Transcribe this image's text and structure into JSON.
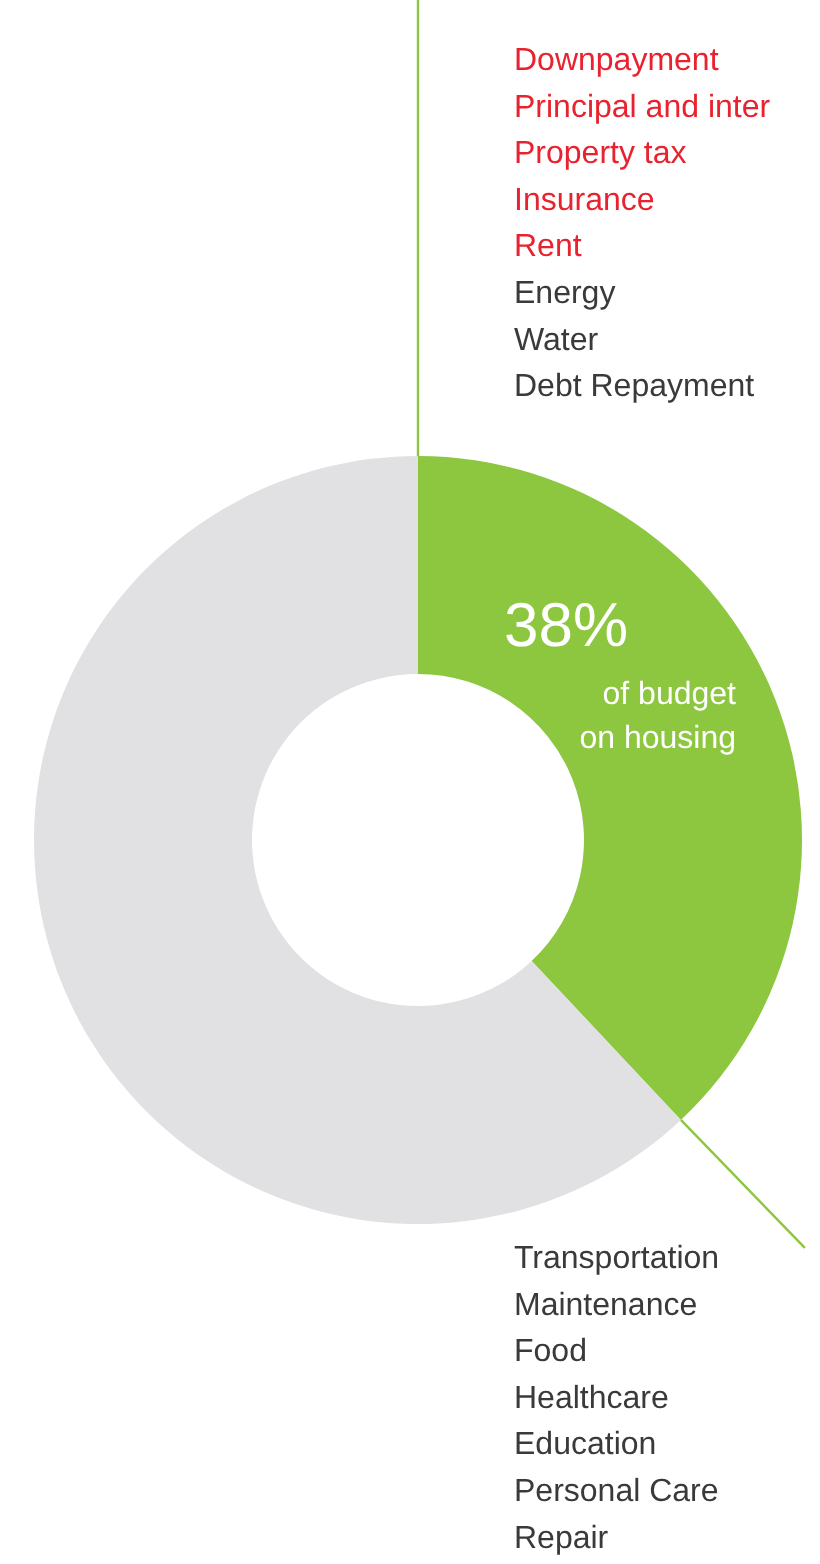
{
  "chart_data": {
    "type": "donut",
    "categories": [
      null,
      null
    ],
    "values": [
      38,
      62
    ],
    "colors": [
      "#8dc63f",
      "#e1e1e3"
    ],
    "value_labels": [
      "38%",
      null
    ],
    "annotations": [
      "of budget on housing",
      "Downpayment",
      "Principal and inter",
      "Property tax",
      "Insurance",
      "Rent",
      "Energy",
      "Water",
      "Debt Repayment",
      "Transportation",
      "Maintenance",
      "Food",
      "Healthcare",
      "Education",
      "Personal Care",
      "Repair"
    ]
  }
}
